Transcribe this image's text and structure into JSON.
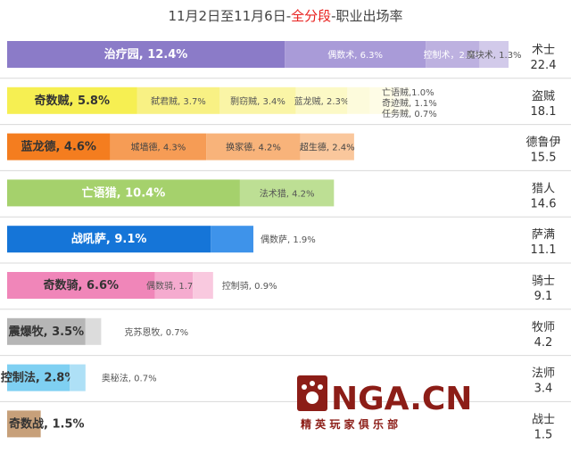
{
  "chart_data": {
    "type": "bar",
    "orientation": "horizontal",
    "stacked": true,
    "title_parts": [
      {
        "text": "11月2日至11月6日-",
        "color": "#444444"
      },
      {
        "text": "全分段",
        "color": "#e8201e"
      },
      {
        "text": "-职业出场率",
        "color": "#444444"
      }
    ],
    "xlim": [
      0,
      25
    ],
    "grid": false,
    "legend": "none",
    "classes": [
      {
        "name": "术士",
        "total": "22.4",
        "segments": [
          {
            "label": "治疗园, 12.4%",
            "value": 12.4,
            "color": "#8b7bc8",
            "label_color": "#ffffff",
            "bold": true
          },
          {
            "label": "偶数术, 6.3%",
            "value": 6.3,
            "color": "#a99bd8",
            "label_color": "#ffffff"
          },
          {
            "label": "控制术，2.4%",
            "value": 2.4,
            "color": "#bdb1e0",
            "label_color": "#ffffff"
          },
          {
            "label": "魔块术, 1.3%",
            "value": 1.3,
            "color": "#d2caea",
            "label_color": "#555555"
          }
        ],
        "extra": []
      },
      {
        "name": "盗贼",
        "total": "18.1",
        "segments": [
          {
            "label": "奇数贼, 5.8%",
            "value": 5.8,
            "color": "#f6ef52",
            "label_color": "#333333",
            "bold": true
          },
          {
            "label": "弑君贼, 3.7%",
            "value": 3.7,
            "color": "#f8f184",
            "label_color": "#555555"
          },
          {
            "label": "剽窃贼, 3.4%",
            "value": 3.4,
            "color": "#faf5a6",
            "label_color": "#555555"
          },
          {
            "label": "蓝龙贼, 2.3%",
            "value": 2.3,
            "color": "#fcf9c6",
            "label_color": "#555555"
          },
          {
            "label": "",
            "value": 1.0,
            "color": "#fdfbdc",
            "label_color": "#555555"
          },
          {
            "label": "",
            "value": 1.1,
            "color": "#fefce6",
            "label_color": "#555555"
          },
          {
            "label": "",
            "value": 0.7,
            "color": "#fefdf0",
            "label_color": "#555555"
          }
        ],
        "extra": [
          "亡语贼,1.0%",
          "奇迹贼, 1.1%",
          "任务贼, 0.7%"
        ]
      },
      {
        "name": "德鲁伊",
        "total": "15.5",
        "segments": [
          {
            "label": "蓝龙德, 4.6%",
            "value": 4.6,
            "color": "#f47d1f",
            "label_color": "#333333",
            "bold": true
          },
          {
            "label": "城墙德, 4.3%",
            "value": 4.3,
            "color": "#f69c55",
            "label_color": "#444444"
          },
          {
            "label": "换家德, 4.2%",
            "value": 4.2,
            "color": "#f8b37a",
            "label_color": "#444444"
          },
          {
            "label": "超生德, 2.4%",
            "value": 2.4,
            "color": "#fac79c",
            "label_color": "#444444"
          }
        ],
        "extra": []
      },
      {
        "name": "猎人",
        "total": "14.6",
        "segments": [
          {
            "label": "亡语猎, 10.4%",
            "value": 10.4,
            "color": "#a5d16c",
            "label_color": "#ffffff",
            "bold": true
          },
          {
            "label": "法术猎, 4.2%",
            "value": 4.2,
            "color": "#bddf94",
            "label_color": "#555555"
          }
        ],
        "extra": []
      },
      {
        "name": "萨满",
        "total": "11.1",
        "segments": [
          {
            "label": "战吼萨, 9.1%",
            "value": 9.1,
            "color": "#1575d8",
            "label_color": "#ffffff",
            "bold": true
          },
          {
            "label": "",
            "value": 1.9,
            "color": "#3e93ea",
            "label_color": "#555555"
          }
        ],
        "extra": [
          "偶数萨, 1.9%"
        ]
      },
      {
        "name": "骑士",
        "total": "9.1",
        "segments": [
          {
            "label": "奇数骑, 6.6%",
            "value": 6.6,
            "color": "#f086b9",
            "label_color": "#333333",
            "bold": true
          },
          {
            "label": "偶数骑, 1.7%",
            "value": 1.7,
            "color": "#f5abcf",
            "label_color": "#555555"
          },
          {
            "label": "",
            "value": 0.9,
            "color": "#f9c9df",
            "label_color": "#555555"
          }
        ],
        "extra": [
          "控制骑, 0.9%"
        ]
      },
      {
        "name": "牧师",
        "total": "4.2",
        "segments": [
          {
            "label": "震爆牧, 3.5%",
            "value": 3.5,
            "color": "#b6b6b6",
            "label_color": "#333333",
            "bold": true
          },
          {
            "label": "",
            "value": 0.7,
            "color": "#dcdcdc",
            "label_color": "#555555"
          }
        ],
        "extra": [
          "克苏恩牧, 0.7%"
        ]
      },
      {
        "name": "法师",
        "total": "3.4",
        "segments": [
          {
            "label": "控制法, 2.8%",
            "value": 2.8,
            "color": "#7fd0f2",
            "label_color": "#333333",
            "bold": true
          },
          {
            "label": "",
            "value": 0.7,
            "color": "#aee0f6",
            "label_color": "#555555"
          }
        ],
        "extra": [
          "奥秘法, 0.7%"
        ]
      },
      {
        "name": "战士",
        "total": "1.5",
        "segments": [
          {
            "label": "",
            "value": 1.5,
            "color": "#c7a07a",
            "label_color": "#333333",
            "bold": true
          }
        ],
        "extra": [
          "奇数战, 1.5%"
        ]
      }
    ]
  },
  "watermark": {
    "main": "NGA.CN",
    "sub": "精 英 玩 家 俱 乐 部"
  }
}
